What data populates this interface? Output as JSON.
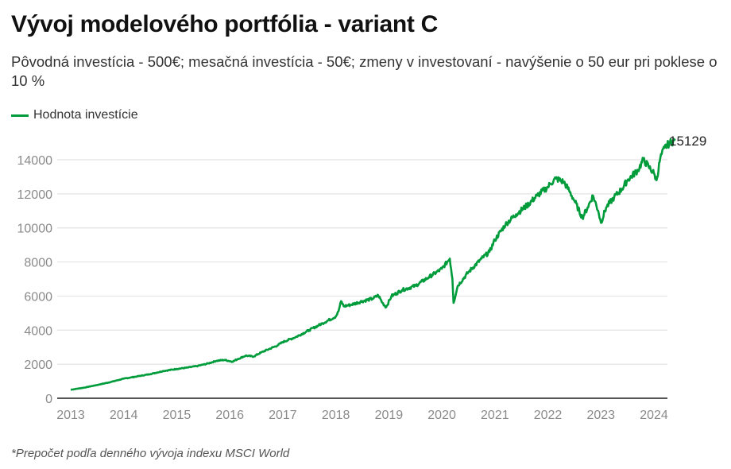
{
  "chart_data": {
    "type": "line",
    "title": "Vývoj modelového portfólia - variant C",
    "subtitle": "Pôvodná investícia - 500€; mesačná investícia - 50€; zmeny v investovaní - navýšenie o 50 eur pri poklese o 10 %",
    "footnote": "*Prepočet podľa denného vývoja indexu MSCI World",
    "xlabel": "",
    "ylabel": "",
    "xlim": [
      2013,
      2024
    ],
    "ylim": [
      0,
      14000
    ],
    "x_ticks": [
      "2013",
      "2014",
      "2015",
      "2016",
      "2017",
      "2018",
      "2019",
      "2020",
      "2021",
      "2022",
      "2023",
      "2024"
    ],
    "y_ticks": [
      "0",
      "2000",
      "4000",
      "6000",
      "8000",
      "10000",
      "12000",
      "14000"
    ],
    "grid": true,
    "legend": "top-left",
    "end_label": "15129",
    "series": [
      {
        "name": "Hodnota investície",
        "color": "#009c3b",
        "points": [
          [
            2013.0,
            500
          ],
          [
            2013.25,
            620
          ],
          [
            2013.5,
            780
          ],
          [
            2013.75,
            950
          ],
          [
            2014.0,
            1150
          ],
          [
            2014.25,
            1280
          ],
          [
            2014.5,
            1420
          ],
          [
            2014.75,
            1600
          ],
          [
            2015.0,
            1720
          ],
          [
            2015.2,
            1800
          ],
          [
            2015.4,
            1900
          ],
          [
            2015.6,
            2050
          ],
          [
            2015.75,
            2200
          ],
          [
            2015.9,
            2250
          ],
          [
            2016.05,
            2150
          ],
          [
            2016.15,
            2300
          ],
          [
            2016.3,
            2500
          ],
          [
            2016.45,
            2450
          ],
          [
            2016.6,
            2700
          ],
          [
            2016.75,
            2900
          ],
          [
            2016.9,
            3100
          ],
          [
            2017.0,
            3300
          ],
          [
            2017.25,
            3600
          ],
          [
            2017.5,
            4000
          ],
          [
            2017.75,
            4400
          ],
          [
            2018.0,
            4800
          ],
          [
            2018.05,
            5100
          ],
          [
            2018.1,
            5700
          ],
          [
            2018.15,
            5400
          ],
          [
            2018.3,
            5500
          ],
          [
            2018.5,
            5700
          ],
          [
            2018.7,
            5850
          ],
          [
            2018.8,
            6050
          ],
          [
            2018.88,
            5600
          ],
          [
            2018.95,
            5350
          ],
          [
            2019.05,
            6000
          ],
          [
            2019.25,
            6350
          ],
          [
            2019.5,
            6600
          ],
          [
            2019.75,
            7100
          ],
          [
            2020.0,
            7600
          ],
          [
            2020.1,
            8000
          ],
          [
            2020.15,
            8200
          ],
          [
            2020.2,
            7000
          ],
          [
            2020.22,
            5600
          ],
          [
            2020.3,
            6600
          ],
          [
            2020.5,
            7400
          ],
          [
            2020.75,
            8200
          ],
          [
            2020.9,
            8600
          ],
          [
            2021.0,
            9300
          ],
          [
            2021.2,
            10200
          ],
          [
            2021.4,
            10800
          ],
          [
            2021.6,
            11300
          ],
          [
            2021.8,
            11900
          ],
          [
            2022.0,
            12400
          ],
          [
            2022.05,
            12600
          ],
          [
            2022.15,
            12900
          ],
          [
            2022.3,
            12700
          ],
          [
            2022.4,
            12200
          ],
          [
            2022.5,
            11600
          ],
          [
            2022.65,
            10600
          ],
          [
            2022.75,
            11200
          ],
          [
            2022.85,
            11900
          ],
          [
            2022.95,
            11000
          ],
          [
            2023.0,
            10300
          ],
          [
            2023.1,
            11200
          ],
          [
            2023.25,
            11800
          ],
          [
            2023.4,
            12300
          ],
          [
            2023.5,
            12800
          ],
          [
            2023.7,
            13400
          ],
          [
            2023.8,
            14000
          ],
          [
            2023.9,
            13600
          ],
          [
            2024.0,
            13200
          ],
          [
            2024.05,
            12800
          ],
          [
            2024.12,
            14100
          ],
          [
            2024.2,
            14700
          ],
          [
            2024.3,
            15000
          ],
          [
            2024.4,
            15129
          ]
        ]
      }
    ]
  }
}
